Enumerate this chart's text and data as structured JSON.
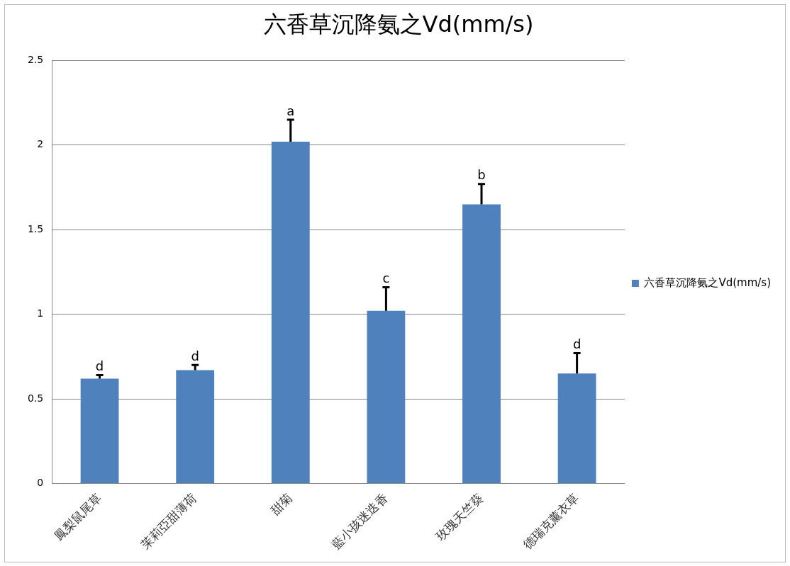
{
  "chart_data": {
    "type": "bar",
    "title": "六香草沉降氨之Vd(mm/s)",
    "categories": [
      "鳳梨鼠尾草",
      "茉莉亞甜薄荷",
      "甜菊",
      "藍小孩迷迭香",
      "玫瑰天竺葵",
      "德瑞克薰衣草"
    ],
    "series": [
      {
        "name": "六香草沉降氨之Vd(mm/s)",
        "color": "#4f81bd",
        "values": [
          0.62,
          0.67,
          2.02,
          1.02,
          1.65,
          0.65
        ],
        "errors": [
          [
            0.62,
            0.64
          ],
          [
            0.67,
            0.7
          ],
          [
            2.02,
            2.15
          ],
          [
            1.02,
            1.16
          ],
          [
            1.65,
            1.77
          ],
          [
            0.65,
            0.77
          ]
        ]
      }
    ],
    "ylim": [
      0,
      2.5
    ],
    "yticks": [
      0,
      0.5,
      1,
      1.5,
      2,
      2.5
    ],
    "grid": "y",
    "legend": "right",
    "annotations": [
      {
        "text": "d",
        "x": "鳳梨鼠尾草",
        "y": 0.64
      },
      {
        "text": "d",
        "x": "茉莉亞甜薄荷",
        "y": 0.7
      },
      {
        "text": "a",
        "x": "甜菊",
        "y": 2.15
      },
      {
        "text": "c",
        "x": "藍小孩迷迭香",
        "y": 1.16
      },
      {
        "text": "b",
        "x": "玫瑰天竺葵",
        "y": 1.77
      },
      {
        "text": "d",
        "x": "德瑞克薰衣草",
        "y": 0.77
      }
    ]
  }
}
